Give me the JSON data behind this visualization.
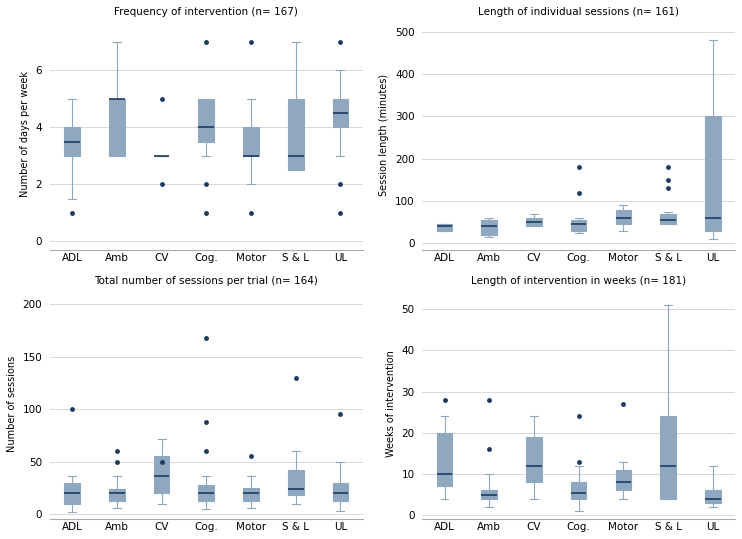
{
  "categories": [
    "ADL",
    "Amb",
    "CV",
    "Cog.",
    "Motor",
    "S & L",
    "UL"
  ],
  "box_color": "#8fa8bf",
  "median_color": "#1e3a5f",
  "whisker_color": "#8fa8bf",
  "cap_color": "#8fa8bf",
  "outlier_color": "#1e3a5f",
  "background_color": "#ffffff",
  "grid_color": "#d8d8d8",
  "panel1": {
    "title": "Frequency of intervention (n= 167)",
    "ylabel": "Number of days per week",
    "ylim": [
      -0.3,
      7.8
    ],
    "yticks": [
      0,
      2,
      4,
      6
    ],
    "boxes": [
      {
        "q1": 3.0,
        "median": 3.5,
        "q3": 4.0,
        "whislo": 1.5,
        "whishi": 5.0,
        "fliers": [
          1.0
        ]
      },
      {
        "q1": 3.0,
        "median": 5.0,
        "q3": 5.0,
        "whislo": 3.0,
        "whishi": 7.0,
        "fliers": []
      },
      {
        "q1": 3.0,
        "median": 3.0,
        "q3": 3.0,
        "whislo": 3.0,
        "whishi": 3.0,
        "fliers": [
          2.0,
          5.0
        ]
      },
      {
        "q1": 3.5,
        "median": 4.0,
        "q3": 5.0,
        "whislo": 3.0,
        "whishi": 5.0,
        "fliers": [
          1.0,
          2.0,
          7.0
        ]
      },
      {
        "q1": 3.0,
        "median": 3.0,
        "q3": 4.0,
        "whislo": 2.0,
        "whishi": 5.0,
        "fliers": [
          1.0,
          7.0
        ]
      },
      {
        "q1": 2.5,
        "median": 3.0,
        "q3": 5.0,
        "whislo": 2.5,
        "whishi": 7.0,
        "fliers": []
      },
      {
        "q1": 4.0,
        "median": 4.5,
        "q3": 5.0,
        "whislo": 3.0,
        "whishi": 6.0,
        "fliers": [
          1.0,
          2.0,
          7.0
        ]
      }
    ]
  },
  "panel2": {
    "title": "Length of individual sessions (n= 161)",
    "ylabel": "Session length (minutes)",
    "ylim": [
      -15,
      530
    ],
    "yticks": [
      0,
      100,
      200,
      300,
      400,
      500
    ],
    "boxes": [
      {
        "q1": 30.0,
        "median": 40.0,
        "q3": 45.0,
        "whislo": 30.0,
        "whishi": 45.0,
        "fliers": []
      },
      {
        "q1": 20.0,
        "median": 40.0,
        "q3": 55.0,
        "whislo": 15.0,
        "whishi": 60.0,
        "fliers": []
      },
      {
        "q1": 40.0,
        "median": 50.0,
        "q3": 60.0,
        "whislo": 40.0,
        "whishi": 70.0,
        "fliers": []
      },
      {
        "q1": 30.0,
        "median": 45.0,
        "q3": 55.0,
        "whislo": 25.0,
        "whishi": 60.0,
        "fliers": [
          120.0,
          180.0
        ]
      },
      {
        "q1": 45.0,
        "median": 60.0,
        "q3": 80.0,
        "whislo": 30.0,
        "whishi": 90.0,
        "fliers": []
      },
      {
        "q1": 45.0,
        "median": 55.0,
        "q3": 70.0,
        "whislo": 45.0,
        "whishi": 75.0,
        "fliers": [
          130.0,
          150.0,
          180.0
        ]
      },
      {
        "q1": 30.0,
        "median": 60.0,
        "q3": 300.0,
        "whislo": 10.0,
        "whishi": 480.0,
        "fliers": []
      }
    ]
  },
  "panel3": {
    "title": "Total number of sessions per trial (n= 164)",
    "ylabel": "Number of sessions",
    "ylim": [
      -5,
      215
    ],
    "yticks": [
      0,
      50,
      100,
      150,
      200
    ],
    "boxes": [
      {
        "q1": 10.0,
        "median": 20.0,
        "q3": 30.0,
        "whislo": 2.0,
        "whishi": 36.0,
        "fliers": [
          100.0
        ]
      },
      {
        "q1": 12.0,
        "median": 20.0,
        "q3": 24.0,
        "whislo": 6.0,
        "whishi": 36.0,
        "fliers": [
          50.0,
          60.0
        ]
      },
      {
        "q1": 20.0,
        "median": 36.0,
        "q3": 55.0,
        "whislo": 10.0,
        "whishi": 72.0,
        "fliers": [
          50.0
        ]
      },
      {
        "q1": 12.0,
        "median": 20.0,
        "q3": 28.0,
        "whislo": 5.0,
        "whishi": 36.0,
        "fliers": [
          60.0,
          88.0,
          168.0
        ]
      },
      {
        "q1": 12.0,
        "median": 20.0,
        "q3": 25.0,
        "whislo": 6.0,
        "whishi": 36.0,
        "fliers": [
          55.0
        ]
      },
      {
        "q1": 18.0,
        "median": 24.0,
        "q3": 42.0,
        "whislo": 10.0,
        "whishi": 60.0,
        "fliers": [
          130.0
        ]
      },
      {
        "q1": 12.0,
        "median": 20.0,
        "q3": 30.0,
        "whislo": 3.0,
        "whishi": 50.0,
        "fliers": [
          95.0
        ]
      }
    ]
  },
  "panel4": {
    "title": "Length of intervention in weeks (n= 181)",
    "ylabel": "Weeks of intervention",
    "ylim": [
      -1,
      55
    ],
    "yticks": [
      0,
      10,
      20,
      30,
      40,
      50
    ],
    "boxes": [
      {
        "q1": 7.0,
        "median": 10.0,
        "q3": 20.0,
        "whislo": 4.0,
        "whishi": 24.0,
        "fliers": [
          28.0
        ]
      },
      {
        "q1": 4.0,
        "median": 5.0,
        "q3": 6.0,
        "whislo": 2.0,
        "whishi": 10.0,
        "fliers": [
          16.0,
          28.0
        ]
      },
      {
        "q1": 8.0,
        "median": 12.0,
        "q3": 19.0,
        "whislo": 4.0,
        "whishi": 24.0,
        "fliers": []
      },
      {
        "q1": 4.0,
        "median": 5.5,
        "q3": 8.0,
        "whislo": 1.0,
        "whishi": 12.0,
        "fliers": [
          13.0,
          24.0
        ]
      },
      {
        "q1": 6.0,
        "median": 8.0,
        "q3": 11.0,
        "whislo": 4.0,
        "whishi": 13.0,
        "fliers": [
          27.0
        ]
      },
      {
        "q1": 4.0,
        "median": 12.0,
        "q3": 24.0,
        "whislo": 4.0,
        "whishi": 51.0,
        "fliers": []
      },
      {
        "q1": 3.0,
        "median": 4.0,
        "q3": 6.0,
        "whislo": 2.0,
        "whishi": 12.0,
        "fliers": []
      }
    ]
  }
}
